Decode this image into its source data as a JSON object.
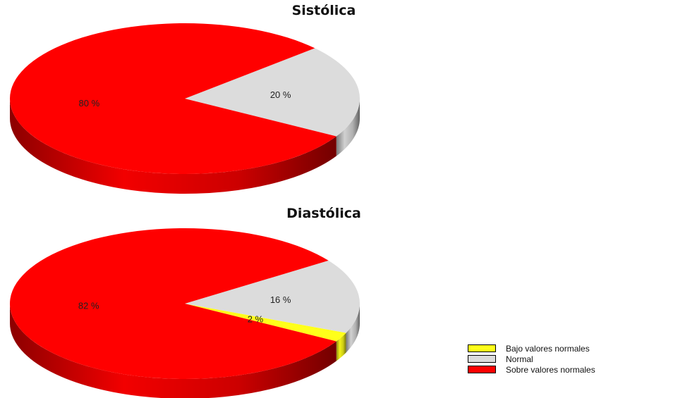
{
  "colors": {
    "bajo": "#ffff1a",
    "normal": "#dcdcdc",
    "sobre": "#ff0000"
  },
  "legend": [
    {
      "label": "Bajo valores normales",
      "color": "#ffff1a"
    },
    {
      "label": "Normal",
      "color": "#dcdcdc"
    },
    {
      "label": "Sobre valores normales",
      "color": "#ff0000"
    }
  ],
  "chart_data": [
    {
      "type": "pie",
      "title": "Sistólica",
      "series": [
        {
          "name": "Normal",
          "value": 20,
          "label": "20 %",
          "color": "#dcdcdc"
        },
        {
          "name": "Sobre valores normales",
          "value": 80,
          "label": "80 %",
          "color": "#ff0000"
        }
      ]
    },
    {
      "type": "pie",
      "title": "Diastólica",
      "series": [
        {
          "name": "Bajo valores normales",
          "value": 2,
          "label": "2 %",
          "color": "#ffff1a"
        },
        {
          "name": "Normal",
          "value": 16,
          "label": "16 %",
          "color": "#dcdcdc"
        },
        {
          "name": "Sobre valores normales",
          "value": 82,
          "label": "82 %",
          "color": "#ff0000"
        }
      ]
    }
  ]
}
